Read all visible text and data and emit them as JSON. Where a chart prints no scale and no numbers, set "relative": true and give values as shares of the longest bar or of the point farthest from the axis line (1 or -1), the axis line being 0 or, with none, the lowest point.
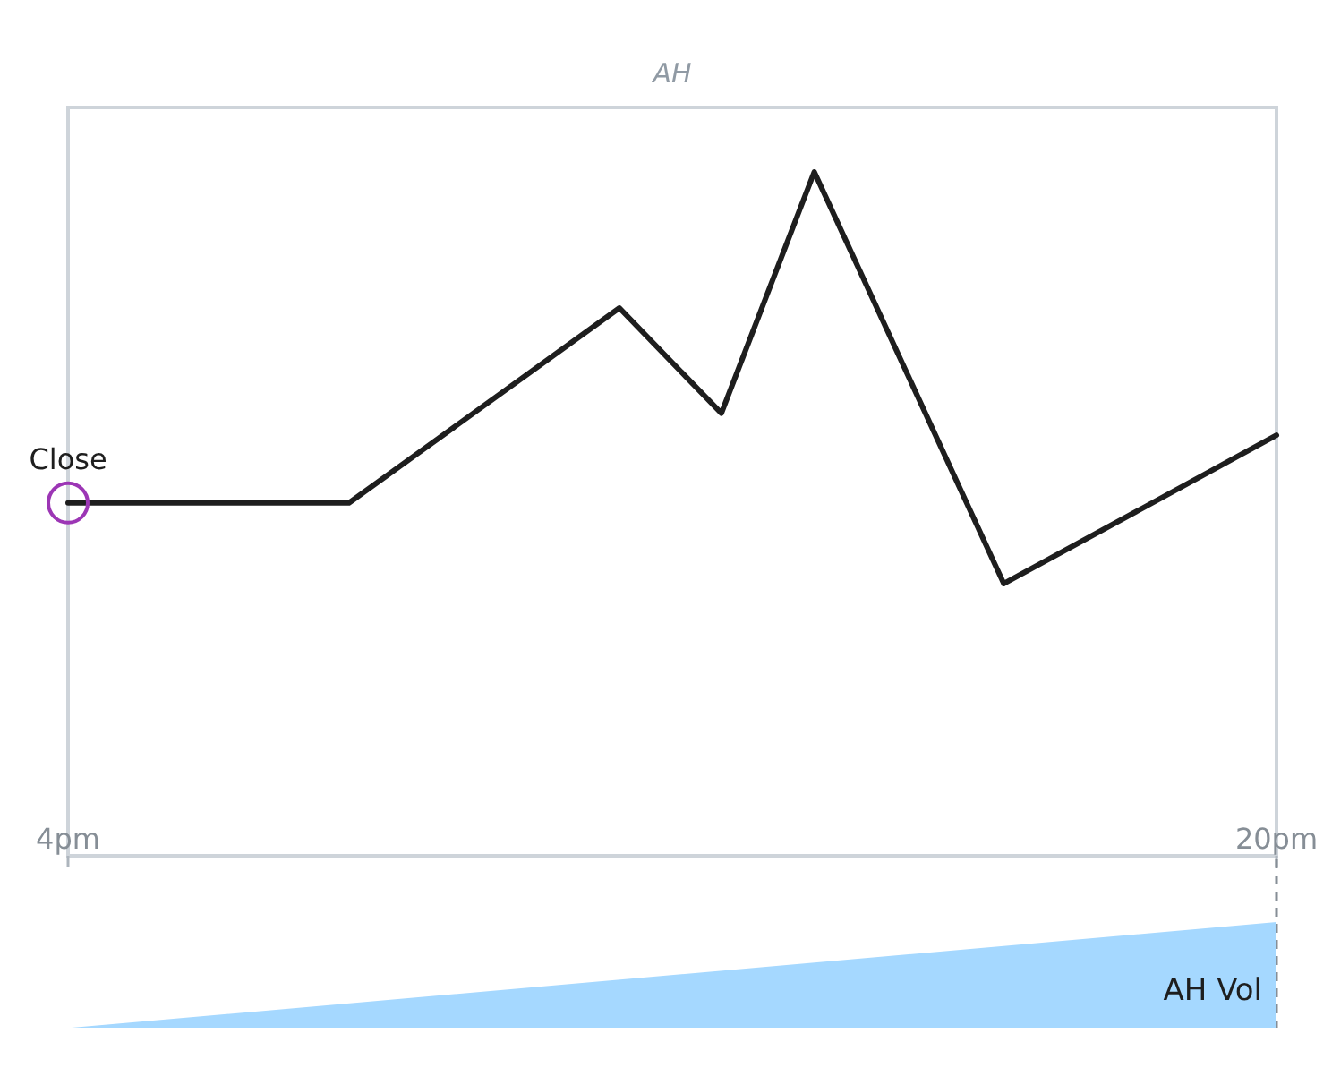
{
  "chart_data": [
    {
      "type": "line",
      "title": "AH",
      "relative": true,
      "x": [
        4,
        7.72,
        11.3,
        12.65,
        13.88,
        16.39,
        20
      ],
      "xlim": [
        4,
        20
      ],
      "xticks": [
        {
          "value": 4,
          "label": "4pm"
        },
        {
          "value": 20,
          "label": "20pm"
        }
      ],
      "series": [
        {
          "color": "#1e1e1e",
          "values": [
            0.516,
            0.516,
            0.801,
            0.647,
            1,
            0.398,
            0.615
          ]
        }
      ],
      "annotations": [
        {
          "text": "Close",
          "x": 4,
          "y": 0.516
        }
      ]
    },
    {
      "type": "area",
      "relative": true,
      "x": [
        4,
        20
      ],
      "xlim": [
        4,
        20
      ],
      "series": [
        {
          "name": "AH Vol",
          "color": "#a5d8ff",
          "values": [
            0,
            1
          ]
        }
      ],
      "ref_lines": [
        {
          "axis": "x",
          "value": 20,
          "color": "#868e96",
          "line_style": "dashed"
        }
      ]
    }
  ]
}
